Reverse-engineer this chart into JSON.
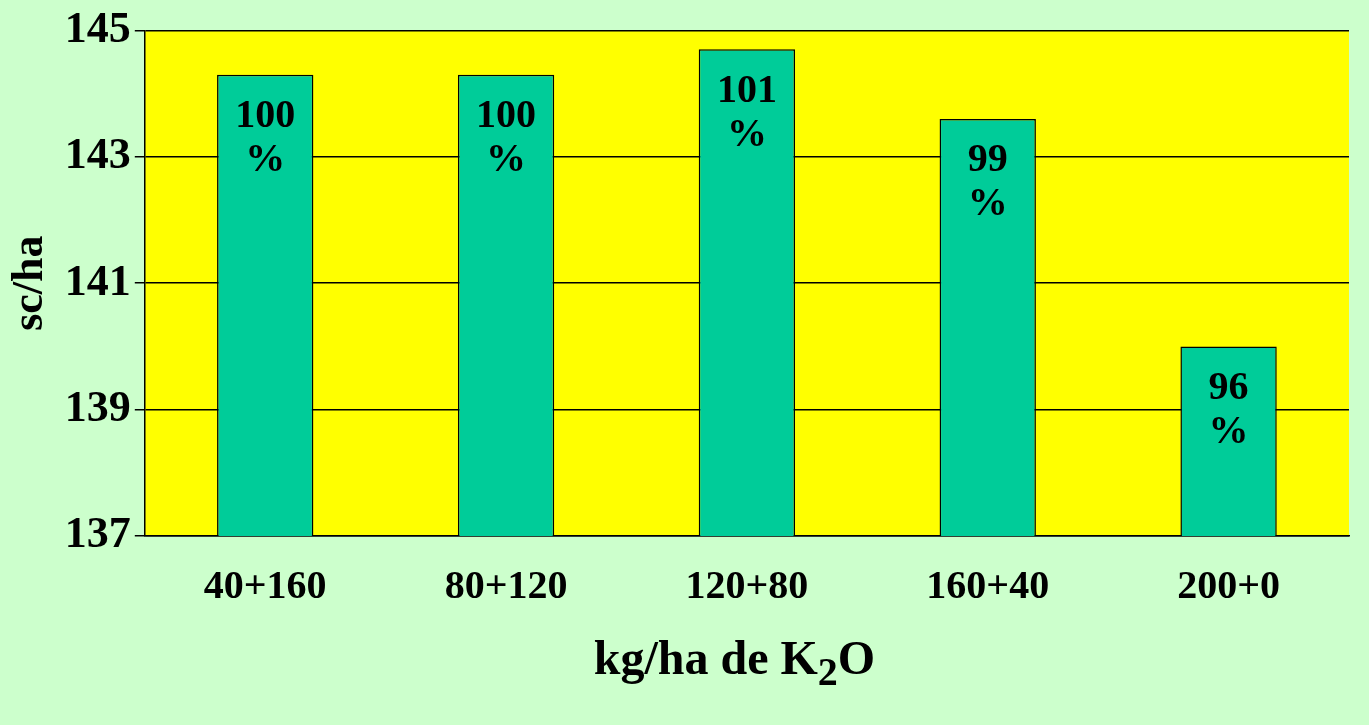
{
  "chart_data": {
    "type": "bar",
    "xlabel": "kg/ha de K$_{2}$O",
    "ylabel": "sc/ha",
    "categories": [
      "40+160",
      "80+120",
      "120+80",
      "160+40",
      "200+0"
    ],
    "values": [
      144.3,
      144.3,
      144.7,
      143.6,
      140.0
    ],
    "color": "#00cc99",
    "annotations": [
      {
        "text": "100 %",
        "x": "40+160",
        "y": 144.3
      },
      {
        "text": "100 %",
        "x": "80+120",
        "y": 144.3
      },
      {
        "text": "101 %",
        "x": "120+80",
        "y": 144.7
      },
      {
        "text": "99 %",
        "x": "160+40",
        "y": 143.6
      },
      {
        "text": "96 %",
        "x": "200+0",
        "y": 140.0
      }
    ],
    "ylim": [
      137,
      145
    ],
    "yticks": [
      137,
      139,
      141,
      143,
      145
    ],
    "grid": "y",
    "legend": false
  }
}
